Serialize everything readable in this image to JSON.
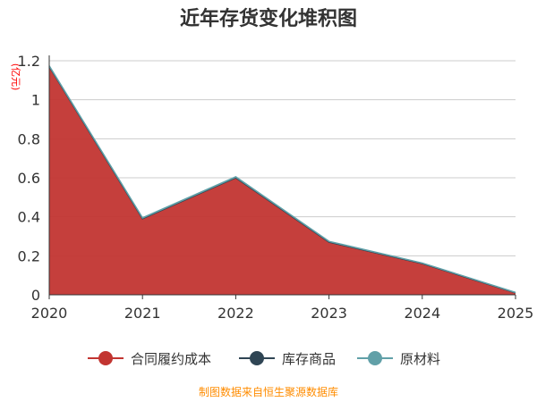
{
  "chart_data": {
    "type": "area",
    "stacked": true,
    "title": "近年存货变化堆积图",
    "ylabel": "(亿元)",
    "x": [
      "2020",
      "2021",
      "2022",
      "2023",
      "2024",
      "2025"
    ],
    "ylim": [
      0,
      1.2
    ],
    "yticks": [
      "0",
      "0.2",
      "0.4",
      "0.6",
      "0.8",
      "1",
      "1.2"
    ],
    "grid": true,
    "legend_position": "bottom",
    "series": [
      {
        "name": "合同履约成本",
        "color": "#c23531",
        "values": [
          1.17,
          0.39,
          0.6,
          0.27,
          0.16,
          0.01
        ]
      },
      {
        "name": "库存商品",
        "color": "#2f4554",
        "values": [
          0,
          0,
          0,
          0,
          0,
          0
        ]
      },
      {
        "name": "原材料",
        "color": "#61a0a8",
        "values": [
          0.004,
          0.005,
          0.005,
          0.004,
          0.003,
          0.002
        ]
      }
    ],
    "source": "制图数据来自恒生聚源数据库"
  }
}
